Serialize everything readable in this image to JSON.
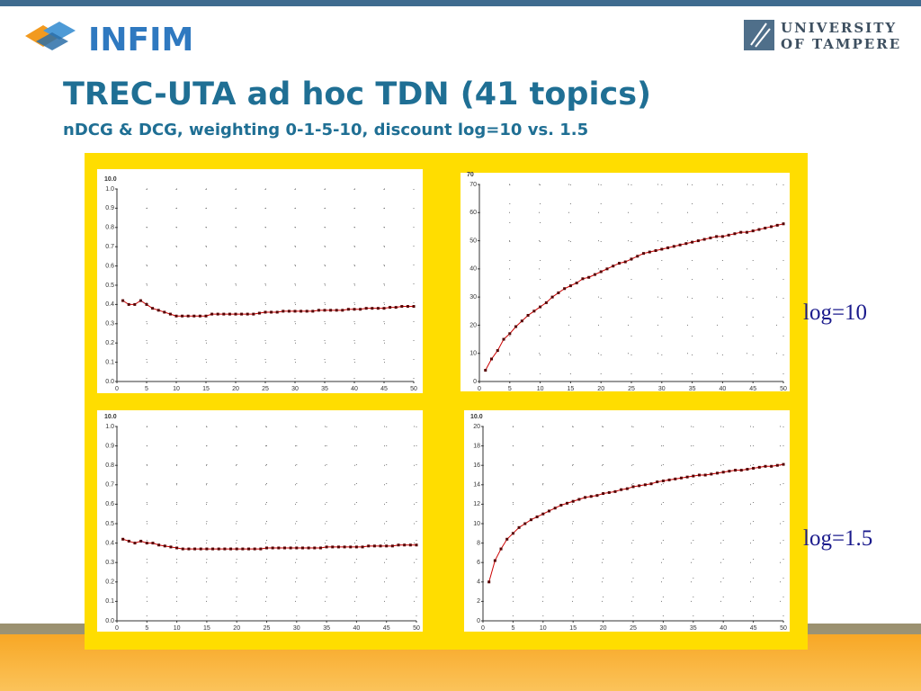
{
  "slide": {
    "logo": "INFIM",
    "university": [
      "UNIVERSITY",
      "OF TAMPERE"
    ],
    "title": "TREC-UTA ad hoc TDN (41 topics)",
    "subtitle": "nDCG & DCG, weighting 0-1-5-10, discount log=10 vs. 1.5",
    "annotations": [
      "log=10",
      "log=1.5"
    ]
  },
  "chart_data": [
    {
      "type": "line",
      "ylabel": "10.0",
      "x": [
        1,
        2,
        3,
        4,
        5,
        6,
        7,
        8,
        9,
        10,
        11,
        12,
        13,
        14,
        15,
        16,
        17,
        18,
        19,
        20,
        21,
        22,
        23,
        24,
        25,
        26,
        27,
        28,
        29,
        30,
        31,
        32,
        33,
        34,
        35,
        36,
        37,
        38,
        39,
        40,
        41,
        42,
        43,
        44,
        45,
        46,
        47,
        48,
        49,
        50
      ],
      "series": [
        {
          "color": "#cc0000",
          "values": [
            0.42,
            0.4,
            0.4,
            0.42,
            0.4,
            0.38,
            0.37,
            0.36,
            0.35,
            0.34,
            0.34,
            0.34,
            0.34,
            0.34,
            0.34,
            0.35,
            0.35,
            0.35,
            0.35,
            0.35,
            0.35,
            0.35,
            0.35,
            0.355,
            0.36,
            0.36,
            0.36,
            0.365,
            0.365,
            0.365,
            0.365,
            0.365,
            0.365,
            0.37,
            0.37,
            0.37,
            0.37,
            0.37,
            0.375,
            0.375,
            0.375,
            0.38,
            0.38,
            0.38,
            0.38,
            0.385,
            0.385,
            0.39,
            0.39,
            0.39
          ]
        }
      ],
      "xlim": [
        0,
        50
      ],
      "xticks": [
        0,
        5,
        10,
        15,
        20,
        25,
        30,
        35,
        40,
        45,
        50
      ],
      "ylim": [
        0,
        1
      ],
      "yticks": [
        {
          "value": 0,
          "label": "0.0"
        },
        0.1,
        0.2,
        0.3,
        0.4,
        0.5,
        0.6,
        0.7,
        0.8,
        0.9,
        {
          "value": 1,
          "label": "1.0"
        }
      ],
      "grid": true
    },
    {
      "type": "line",
      "ylabel": "70",
      "x": [
        1,
        2,
        3,
        4,
        5,
        6,
        7,
        8,
        9,
        10,
        11,
        12,
        13,
        14,
        15,
        16,
        17,
        18,
        19,
        20,
        21,
        22,
        23,
        24,
        25,
        26,
        27,
        28,
        29,
        30,
        31,
        32,
        33,
        34,
        35,
        36,
        37,
        38,
        39,
        40,
        41,
        42,
        43,
        44,
        45,
        46,
        47,
        48,
        49,
        50
      ],
      "series": [
        {
          "color": "#cc0000",
          "values": [
            4,
            8,
            11,
            15,
            17,
            19.5,
            21.5,
            23.5,
            25,
            26.5,
            28,
            30,
            31.5,
            33,
            34,
            35,
            36.5,
            37,
            38,
            39,
            40,
            41,
            42,
            42.5,
            43.5,
            44.5,
            45.5,
            46,
            46.5,
            47,
            47.5,
            48,
            48.5,
            49,
            49.5,
            50,
            50.5,
            51,
            51.5,
            51.5,
            52,
            52.5,
            53,
            53,
            53.5,
            54,
            54.5,
            55,
            55.5,
            56
          ]
        }
      ],
      "xlim": [
        0,
        50
      ],
      "xticks": [
        0,
        5,
        10,
        15,
        20,
        25,
        30,
        35,
        40,
        45,
        50
      ],
      "ylim": [
        0,
        70
      ],
      "yticks": [
        0,
        10,
        20,
        30,
        40,
        50,
        60,
        70
      ],
      "grid": true
    },
    {
      "type": "line",
      "ylabel": "10.0",
      "x": [
        1,
        2,
        3,
        4,
        5,
        6,
        7,
        8,
        9,
        10,
        11,
        12,
        13,
        14,
        15,
        16,
        17,
        18,
        19,
        20,
        21,
        22,
        23,
        24,
        25,
        26,
        27,
        28,
        29,
        30,
        31,
        32,
        33,
        34,
        35,
        36,
        37,
        38,
        39,
        40,
        41,
        42,
        43,
        44,
        45,
        46,
        47,
        48,
        49,
        50
      ],
      "series": [
        {
          "color": "#cc0000",
          "values": [
            0.42,
            0.41,
            0.4,
            0.41,
            0.4,
            0.4,
            0.39,
            0.385,
            0.38,
            0.375,
            0.37,
            0.37,
            0.37,
            0.37,
            0.37,
            0.37,
            0.37,
            0.37,
            0.37,
            0.37,
            0.37,
            0.37,
            0.37,
            0.37,
            0.375,
            0.375,
            0.375,
            0.375,
            0.375,
            0.375,
            0.375,
            0.375,
            0.375,
            0.375,
            0.38,
            0.38,
            0.38,
            0.38,
            0.38,
            0.38,
            0.38,
            0.385,
            0.385,
            0.385,
            0.385,
            0.385,
            0.39,
            0.39,
            0.39,
            0.39
          ]
        }
      ],
      "xlim": [
        0,
        50
      ],
      "xticks": [
        0,
        5,
        10,
        15,
        20,
        25,
        30,
        35,
        40,
        45,
        50
      ],
      "ylim": [
        0,
        1
      ],
      "yticks": [
        {
          "value": 0,
          "label": "0.0"
        },
        0.1,
        0.2,
        0.3,
        0.4,
        0.5,
        0.6,
        0.7,
        0.8,
        0.9,
        {
          "value": 1,
          "label": "1.0"
        }
      ],
      "grid": true
    },
    {
      "type": "line",
      "ylabel": "10.0",
      "x": [
        1,
        2,
        3,
        4,
        5,
        6,
        7,
        8,
        9,
        10,
        11,
        12,
        13,
        14,
        15,
        16,
        17,
        18,
        19,
        20,
        21,
        22,
        23,
        24,
        25,
        26,
        27,
        28,
        29,
        30,
        31,
        32,
        33,
        34,
        35,
        36,
        37,
        38,
        39,
        40,
        41,
        42,
        43,
        44,
        45,
        46,
        47,
        48,
        49,
        50
      ],
      "series": [
        {
          "color": "#cc0000",
          "values": [
            4,
            6.2,
            7.4,
            8.4,
            9,
            9.6,
            10,
            10.4,
            10.7,
            11,
            11.3,
            11.6,
            11.9,
            12.1,
            12.3,
            12.5,
            12.7,
            12.8,
            12.9,
            13.1,
            13.2,
            13.3,
            13.5,
            13.6,
            13.8,
            13.9,
            14,
            14.1,
            14.3,
            14.4,
            14.5,
            14.6,
            14.7,
            14.8,
            14.9,
            15,
            15,
            15.1,
            15.2,
            15.3,
            15.4,
            15.5,
            15.5,
            15.6,
            15.7,
            15.8,
            15.9,
            15.9,
            16,
            16.1
          ]
        }
      ],
      "xlim": [
        0,
        50
      ],
      "xticks": [
        0,
        5,
        10,
        15,
        20,
        25,
        30,
        35,
        40,
        45,
        50
      ],
      "ylim": [
        0,
        20
      ],
      "yticks": [
        0,
        2,
        4,
        6,
        8,
        10,
        12,
        14,
        16,
        18,
        20
      ],
      "grid": true
    }
  ]
}
